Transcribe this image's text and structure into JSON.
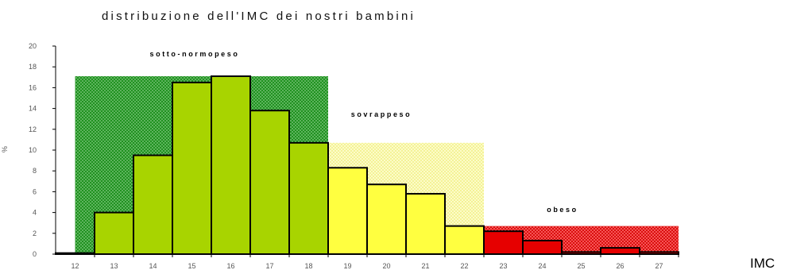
{
  "chart_data": {
    "type": "bar",
    "title": "distribuzione dell'IMC dei nostri bambini",
    "xlabel": "IMC",
    "ylabel": "%",
    "ylim": [
      0,
      20
    ],
    "yticks": [
      0,
      2,
      4,
      6,
      8,
      10,
      12,
      14,
      16,
      18,
      20
    ],
    "categories": [
      "12",
      "13",
      "14",
      "15",
      "16",
      "17",
      "18",
      "19",
      "20",
      "21",
      "22",
      "23",
      "24",
      "25",
      "26",
      "27"
    ],
    "values": [
      0.1,
      4.0,
      9.5,
      16.5,
      17.1,
      13.8,
      10.7,
      8.3,
      6.7,
      5.8,
      2.7,
      2.2,
      1.3,
      0.2,
      0.6,
      0.2
    ],
    "bar_colors": [
      "#a8d400",
      "#a8d400",
      "#a8d400",
      "#a8d400",
      "#a8d400",
      "#a8d400",
      "#a8d400",
      "#ffff40",
      "#ffff40",
      "#ffff40",
      "#ffff40",
      "#e60000",
      "#e60000",
      "#e60000",
      "#e60000",
      "#e60000"
    ],
    "zones": [
      {
        "label": "sotto-normopeso",
        "x_from": 12,
        "x_to": 18.5,
        "level": 17.1,
        "color": "#1a9a1a"
      },
      {
        "label": "sovrappeso",
        "x_from": 18.5,
        "x_to": 22.5,
        "level": 10.7,
        "color": "#ffff80"
      },
      {
        "label": "obeso",
        "x_from": 22.5,
        "x_to": 27.5,
        "level": 2.7,
        "color": "#e60000"
      }
    ],
    "grid": false,
    "legend": "none"
  }
}
